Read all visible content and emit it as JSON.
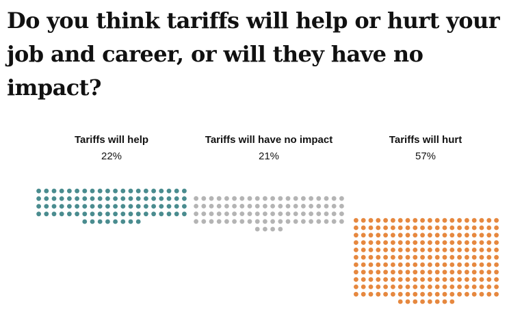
{
  "title": "Do you think tariffs will help or hurt your job and career, or will they have no impact?",
  "chart_data": {
    "type": "waffle",
    "title": "Do you think tariffs will help or hurt your job and career, or will they have no impact?",
    "categories": [
      "Tariffs will help",
      "Tariffs will have no impact",
      "Tariffs will hurt"
    ],
    "values": [
      22,
      21,
      57
    ],
    "value_labels": [
      "22%",
      "21%",
      "57%"
    ],
    "colors": [
      "#4a8c8f",
      "#b4b4b4",
      "#e6883f"
    ],
    "grid": false,
    "legend": "none"
  }
}
